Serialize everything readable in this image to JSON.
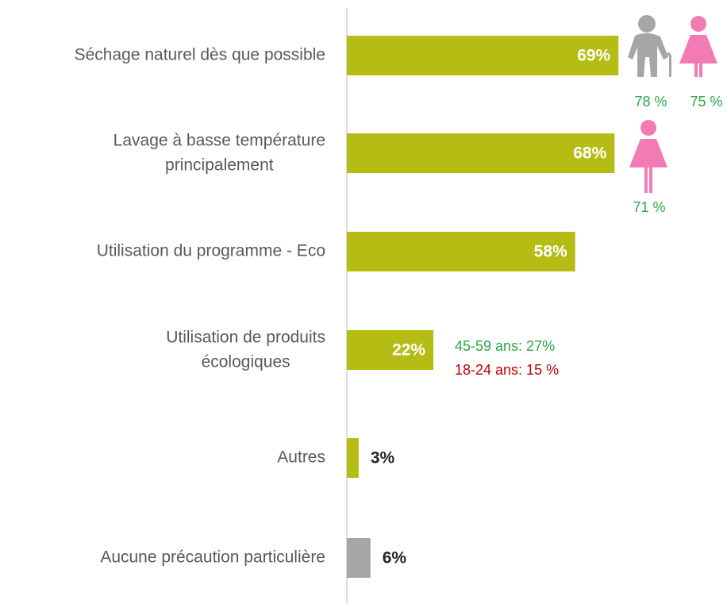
{
  "chart_data": {
    "type": "bar",
    "orientation": "horizontal",
    "categories": [
      "Séchage naturel dès que possible",
      "Lavage à basse température\nprincipalement",
      "Utilisation du programme - Eco",
      "Utilisation de produits\nécologiques",
      "Autres",
      "Aucune précaution particulière"
    ],
    "values": [
      69,
      68,
      58,
      22,
      3,
      6
    ],
    "value_labels": [
      "69%",
      "68%",
      "58%",
      "22%",
      "3%",
      "6%"
    ],
    "colors": [
      "#b5bd14",
      "#b5bd14",
      "#b5bd14",
      "#b5bd14",
      "#b5bd14",
      "#a6a6a6"
    ],
    "annotations": [
      {
        "text": "78 %",
        "color": "#2ea84a"
      },
      {
        "text": "75 %",
        "color": "#2ea84a"
      },
      {
        "text": "71 %",
        "color": "#2ea84a"
      },
      {
        "text": "45-59 ans: 27%",
        "color": "#2ea84a"
      },
      {
        "text": "18-24 ans: 15 %",
        "color": "#c00000"
      }
    ]
  }
}
